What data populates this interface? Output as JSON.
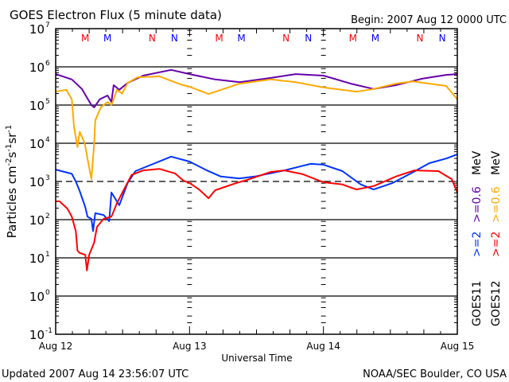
{
  "chart_data": {
    "type": "line",
    "title": "GOES Electron Flux (5 minute data)",
    "begin_label": "Begin: 2007 Aug 12 0000 UTC",
    "xlabel": "Universal Time",
    "ylabel": "Particles cm-2s-1sr-1",
    "yscale": "log",
    "ylim_log10": [
      -1,
      7
    ],
    "ytick_labels": [
      {
        "base": "10",
        "exp": "7",
        "log": 7
      },
      {
        "base": "10",
        "exp": "6",
        "log": 6
      },
      {
        "base": "10",
        "exp": "5",
        "log": 5
      },
      {
        "base": "10",
        "exp": "4",
        "log": 4
      },
      {
        "base": "10",
        "exp": "3",
        "log": 3
      },
      {
        "base": "10",
        "exp": "2",
        "log": 2
      },
      {
        "base": "10",
        "exp": "1",
        "log": 1
      },
      {
        "base": "10",
        "exp": "0",
        "log": 0
      },
      {
        "base": "10",
        "exp": "-1",
        "log": -1
      }
    ],
    "xlim_hours": [
      0,
      72
    ],
    "xtick_labels": [
      {
        "label": "Aug 12",
        "hour": 0
      },
      {
        "label": "Aug 13",
        "hour": 24
      },
      {
        "label": "Aug 14",
        "hour": 48
      },
      {
        "label": "Aug 15",
        "hour": 72
      }
    ],
    "solid_gridlines_log10": [
      6,
      5,
      4,
      2,
      1,
      0
    ],
    "dashed_threshold_log10": 3,
    "markers": [
      {
        "label": "M",
        "color": "#ff0000",
        "hours": [
          5.3,
          29.3,
          53.3
        ]
      },
      {
        "label": "M",
        "color": "#0000ff",
        "hours": [
          9.3,
          33.3,
          57.3
        ]
      },
      {
        "label": "N",
        "color": "#ff0000",
        "hours": [
          17.3,
          41.3,
          65.3
        ]
      },
      {
        "label": "N",
        "color": "#0000ff",
        "hours": [
          21.3,
          45.3,
          69.3
        ]
      }
    ],
    "series": [
      {
        "name": "GOES11 >=0.6 MeV",
        "color": "#6600aa",
        "x_hours": [
          0,
          2.9,
          4.7,
          5.7,
          6.4,
          6.9,
          7.9,
          9.3,
          10,
          10.4,
          11.4,
          12.9,
          15.7,
          20.7,
          24,
          28.6,
          33,
          38.6,
          43,
          48,
          52.9,
          57,
          61,
          65.7,
          70,
          72
        ],
        "y_log10": [
          5.81,
          5.67,
          5.42,
          5.17,
          5.0,
          4.94,
          5.15,
          5.25,
          5.08,
          5.52,
          5.4,
          5.58,
          5.77,
          5.92,
          5.81,
          5.67,
          5.6,
          5.71,
          5.81,
          5.77,
          5.56,
          5.42,
          5.52,
          5.69,
          5.79,
          5.81
        ]
      },
      {
        "name": "GOES12 >=0.6 MeV",
        "color": "#ffaa00",
        "x_hours": [
          0,
          1.9,
          2.9,
          3.3,
          3.9,
          4.3,
          5.2,
          5.7,
          6.4,
          6.9,
          7.1,
          8.1,
          9.3,
          10,
          11,
          11.9,
          12.9,
          14.7,
          18.6,
          22.4,
          24,
          27.4,
          33,
          38.6,
          43,
          48,
          54,
          57,
          61,
          64,
          70,
          72
        ],
        "y_log10": [
          5.35,
          5.4,
          5.15,
          4.42,
          3.9,
          4.3,
          4.0,
          3.6,
          3.06,
          4.0,
          4.6,
          4.94,
          5.08,
          5.0,
          5.4,
          5.3,
          5.58,
          5.73,
          5.75,
          5.54,
          5.48,
          5.29,
          5.56,
          5.67,
          5.6,
          5.46,
          5.35,
          5.42,
          5.56,
          5.62,
          5.5,
          5.15
        ]
      },
      {
        "name": "GOES11 >=2 MeV",
        "color": "#0033ff",
        "x_hours": [
          0,
          2.9,
          3.6,
          4.3,
          5.3,
          5.7,
          6.4,
          6.7,
          7.1,
          8.6,
          9.6,
          10,
          11.4,
          12.9,
          14.3,
          20.7,
          24,
          27.1,
          29.6,
          32.9,
          35.7,
          41,
          45.7,
          48,
          51.4,
          54.7,
          57,
          60.4,
          63.9,
          67,
          70,
          72
        ],
        "y_log10": [
          3.31,
          3.2,
          3.0,
          2.75,
          2.33,
          2.08,
          2.02,
          1.7,
          2.17,
          2.12,
          1.96,
          2.71,
          2.38,
          2.96,
          3.27,
          3.65,
          3.52,
          3.29,
          3.13,
          3.08,
          3.13,
          3.29,
          3.46,
          3.44,
          3.27,
          2.92,
          2.79,
          2.96,
          3.23,
          3.48,
          3.6,
          3.71
        ]
      },
      {
        "name": "GOES12 >=2 MeV",
        "color": "#ff0000",
        "x_hours": [
          0,
          0.7,
          2.1,
          2.9,
          3.6,
          3.9,
          4.3,
          5.3,
          5.6,
          6,
          6.9,
          7.4,
          8.6,
          10,
          11,
          12.1,
          13.6,
          15.7,
          18.6,
          21.4,
          22.9,
          24,
          25.7,
          27.4,
          28.6,
          32.4,
          34.3,
          38.6,
          41,
          44.3,
          48,
          51.4,
          53.9,
          57,
          61,
          64.3,
          68.6,
          71,
          72
        ],
        "y_log10": [
          2.48,
          2.48,
          2.29,
          2.08,
          1.7,
          1.19,
          1.13,
          1.08,
          0.67,
          1.08,
          1.4,
          1.81,
          2.02,
          2.08,
          2.44,
          2.75,
          3.17,
          3.29,
          3.33,
          3.21,
          3.02,
          2.96,
          2.79,
          2.56,
          2.77,
          2.96,
          3.04,
          3.25,
          3.29,
          3.19,
          2.98,
          2.92,
          2.79,
          2.88,
          3.13,
          3.29,
          3.27,
          3.06,
          2.71
        ]
      }
    ],
    "legend": {
      "placement": "right",
      "columns": [
        {
          "satellite": "GOES11",
          "low": ">=2",
          "high": ">=0.6",
          "unit": "MeV",
          "low_color": "#0033ff",
          "high_color": "#6600aa"
        },
        {
          "satellite": "GOES12",
          "low": ">=2",
          "high": ">=0.6",
          "unit": "MeV",
          "low_color": "#ff0000",
          "high_color": "#ffaa00"
        }
      ]
    }
  },
  "footer": {
    "updated": "Updated 2007 Aug 14 23:56:07 UTC",
    "credit": "NOAA/SEC Boulder, CO USA"
  }
}
